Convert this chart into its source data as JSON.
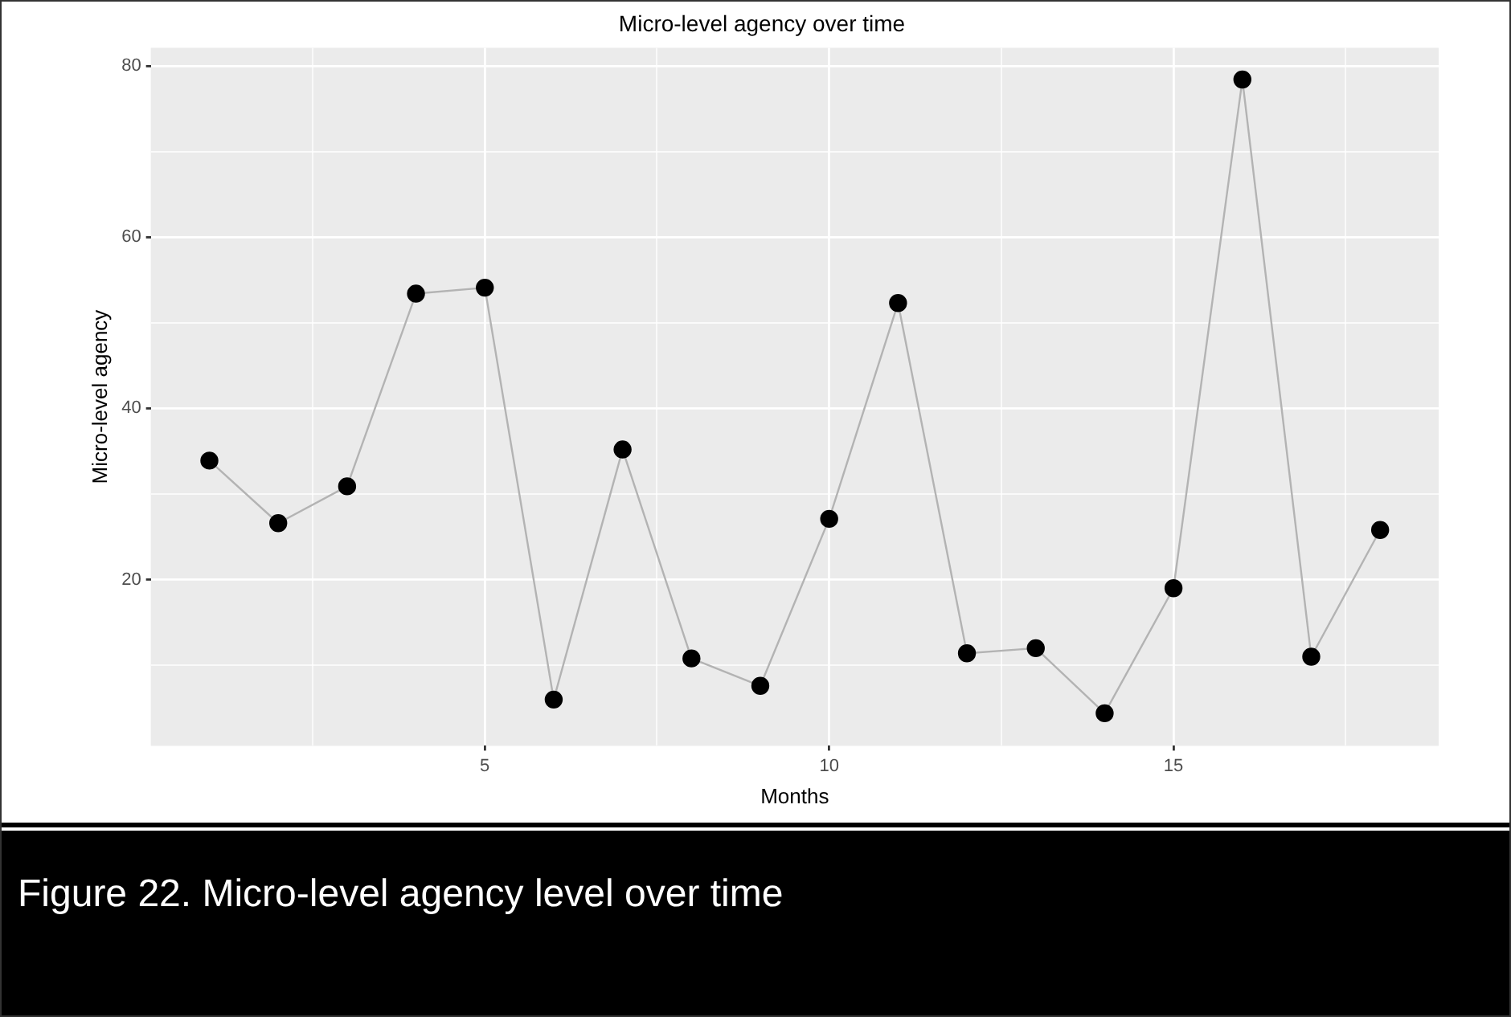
{
  "chart_data": {
    "type": "line",
    "title": "Micro-level agency over time",
    "xlabel": "Months",
    "ylabel": "Micro-level agency",
    "annotations": [
      "Figure 22. Micro-level agency level over time"
    ],
    "x": [
      1,
      2,
      3,
      4,
      5,
      6,
      7,
      8,
      9,
      10,
      11,
      12,
      13,
      14,
      15,
      16,
      17,
      18
    ],
    "series": [
      {
        "color": "#000000",
        "values": [
          33.9,
          26.6,
          30.9,
          53.4,
          54.1,
          6.0,
          35.2,
          10.8,
          7.6,
          27.1,
          52.3,
          11.4,
          12.0,
          4.4,
          19.0,
          78.4,
          11.0,
          25.8
        ]
      }
    ],
    "xlim": [
      0.15,
      18.85
    ],
    "xticks": [
      {
        "value": 2.5,
        "label": null
      },
      5,
      {
        "value": 7.5,
        "label": null
      },
      10,
      {
        "value": 12.5,
        "label": null
      },
      15,
      {
        "value": 17.5,
        "label": null
      }
    ],
    "ylim": [
      0.6,
      82.1
    ],
    "yticks": [
      {
        "value": 10,
        "label": null
      },
      20,
      {
        "value": 30,
        "label": null
      },
      40,
      {
        "value": 50,
        "label": null
      },
      60,
      {
        "value": 70,
        "label": null
      },
      80
    ],
    "grid": true,
    "legend": false,
    "marker": "circle",
    "line_style": "solid"
  }
}
